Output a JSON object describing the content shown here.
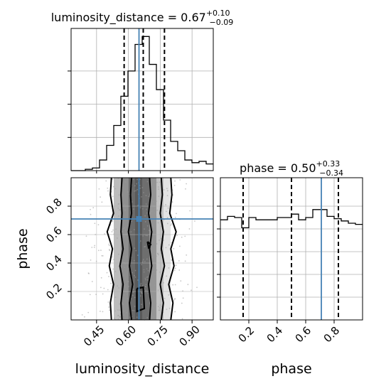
{
  "chart_data": {
    "type": "corner",
    "params": [
      "luminosity_distance",
      "phase"
    ],
    "truths": {
      "luminosity_distance": 0.65,
      "phase": 0.71
    },
    "panels": {
      "hist_luminosity_distance": {
        "type": "histogram",
        "title_main": "luminosity_distance = 0.67",
        "title_sup": "+0.10",
        "title_sub": "−0.09",
        "xlim": [
          0.33,
          1.0
        ],
        "bin_edges": [
          0.33,
          0.3635,
          0.397,
          0.4305,
          0.464,
          0.4975,
          0.531,
          0.5645,
          0.598,
          0.6315,
          0.665,
          0.6985,
          0.732,
          0.7655,
          0.799,
          0.8325,
          0.866,
          0.8995,
          0.933,
          0.9665,
          1.0
        ],
        "counts": [
          0,
          0,
          1,
          2,
          8,
          19,
          34,
          56,
          75,
          95,
          101,
          80,
          61,
          38,
          22,
          15,
          8,
          6,
          7,
          5
        ],
        "quantiles": [
          0.58,
          0.67,
          0.77
        ],
        "grid": true
      },
      "hist_phase": {
        "type": "histogram",
        "title_main": "phase = 0.50",
        "title_sup": "+0.33",
        "title_sub": "−0.34",
        "xlim": [
          0.0,
          1.0
        ],
        "xticks": [
          0.2,
          0.4,
          0.6,
          0.8
        ],
        "xticklabels": [
          "0.2",
          "0.4",
          "0.6",
          "0.8"
        ],
        "xlabel": "phase",
        "bin_edges": [
          0.0,
          0.05,
          0.1,
          0.15,
          0.2,
          0.25,
          0.3,
          0.35,
          0.4,
          0.45,
          0.5,
          0.55,
          0.6,
          0.65,
          0.7,
          0.75,
          0.8,
          0.85,
          0.9,
          0.95,
          1.0
        ],
        "counts": [
          88,
          91,
          90,
          81,
          90,
          88,
          88,
          88,
          90,
          90,
          93,
          88,
          90,
          97,
          97,
          91,
          89,
          87,
          85,
          84
        ],
        "quantiles": [
          0.16,
          0.5,
          0.83
        ],
        "grid": true
      },
      "joint": {
        "type": "2d-density",
        "xlim": [
          0.33,
          1.0
        ],
        "ylim": [
          0.0,
          1.0
        ],
        "xticks": [
          0.45,
          0.6,
          0.75,
          0.9
        ],
        "xticklabels": [
          "0.45",
          "0.60",
          "0.75",
          "0.90"
        ],
        "yticks": [
          0.2,
          0.4,
          0.6,
          0.8
        ],
        "yticklabels": [
          "0.2",
          "0.4",
          "0.6",
          "0.8"
        ],
        "xlabel": "luminosity_distance",
        "ylabel": "phase",
        "density_columns": [
          {
            "x0": 0.531,
            "x1": 0.5645,
            "shade": "#bcbcbc"
          },
          {
            "x0": 0.5645,
            "x1": 0.598,
            "shade": "#8f8f8f"
          },
          {
            "x0": 0.598,
            "x1": 0.6315,
            "shade": "#6a6a6a"
          },
          {
            "x0": 0.6315,
            "x1": 0.665,
            "shade": "#5a5a5a"
          },
          {
            "x0": 0.665,
            "x1": 0.6985,
            "shade": "#6e6e6e"
          },
          {
            "x0": 0.6985,
            "x1": 0.732,
            "shade": "#959595"
          },
          {
            "x0": 0.732,
            "x1": 0.7655,
            "shade": "#c2c2c2"
          },
          {
            "x0": 0.7655,
            "x1": 0.799,
            "shade": "#e2e2e2"
          }
        ],
        "contours": [
          {
            "x": [
              0.52,
              0.515,
              0.53,
              0.51,
              0.525,
              0.5,
              0.53,
              0.515,
              0.52
            ],
            "y": [
              0.0,
              0.12,
              0.25,
              0.38,
              0.5,
              0.62,
              0.75,
              0.88,
              1.0
            ]
          },
          {
            "x": [
              0.8,
              0.81,
              0.79,
              0.815,
              0.8,
              0.825,
              0.795,
              0.805,
              0.8
            ],
            "y": [
              0.0,
              0.12,
              0.25,
              0.38,
              0.5,
              0.62,
              0.75,
              0.88,
              1.0
            ]
          },
          {
            "x": [
              0.57,
              0.565,
              0.575,
              0.56,
              0.575,
              0.565,
              0.57,
              0.565,
              0.57
            ],
            "y": [
              0.0,
              0.12,
              0.25,
              0.38,
              0.5,
              0.62,
              0.75,
              0.88,
              1.0
            ]
          },
          {
            "x": [
              0.755,
              0.765,
              0.75,
              0.77,
              0.755,
              0.765,
              0.75,
              0.76,
              0.755
            ],
            "y": [
              0.0,
              0.12,
              0.25,
              0.38,
              0.5,
              0.62,
              0.75,
              0.88,
              1.0
            ]
          },
          {
            "x": [
              0.615,
              0.605,
              0.62,
              0.605,
              0.615,
              0.6,
              0.615,
              0.61,
              0.615
            ],
            "y": [
              0.0,
              0.12,
              0.25,
              0.38,
              0.5,
              0.62,
              0.75,
              0.88,
              1.0
            ]
          },
          {
            "x": [
              0.7,
              0.705,
              0.695,
              0.71,
              0.7,
              0.71,
              0.695,
              0.705,
              0.7
            ],
            "y": [
              0.0,
              0.12,
              0.25,
              0.38,
              0.5,
              0.62,
              0.75,
              0.88,
              1.0
            ]
          }
        ],
        "inner_blobs": [
          {
            "x": [
              0.64,
              0.67,
              0.675,
              0.64,
              0.64
            ],
            "y": [
              0.22,
              0.23,
              0.08,
              0.06,
              0.22
            ]
          },
          {
            "x": [
              0.69,
              0.705,
              0.695,
              0.69
            ],
            "y": [
              0.55,
              0.53,
              0.51,
              0.55
            ]
          }
        ],
        "truth_marker": [
          0.65,
          0.71
        ]
      }
    }
  }
}
